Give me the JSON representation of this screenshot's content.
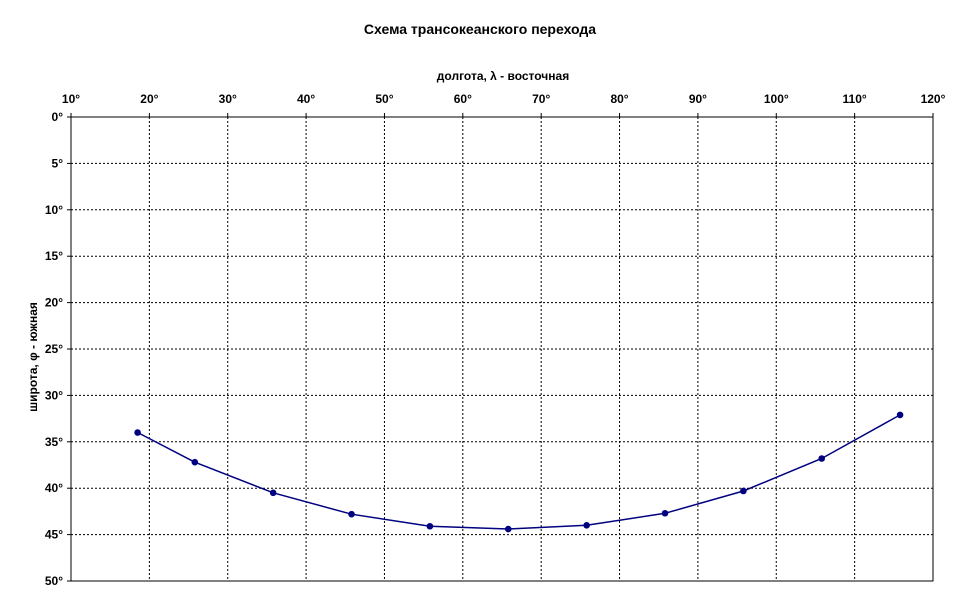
{
  "chart_data": {
    "type": "line",
    "title": "Схема трансокеанского перехода",
    "xlabel": "долгота, λ - восточная",
    "ylabel": "широта, φ - южная",
    "xlim": [
      10,
      120
    ],
    "ylim": [
      0,
      50
    ],
    "y_inverted": true,
    "x_axis_position": "top",
    "x_ticks": [
      "10°",
      "20°",
      "30°",
      "40°",
      "50°",
      "60°",
      "70°",
      "80°",
      "90°",
      "100°",
      "110°",
      "120°"
    ],
    "y_ticks": [
      "0°",
      "5°",
      "10°",
      "15°",
      "20°",
      "25°",
      "30°",
      "35°",
      "40°",
      "45°",
      "50°"
    ],
    "grid": true,
    "legend": "none",
    "series_color": "#000080",
    "series": [
      {
        "x": [
          18.5,
          25.8,
          35.8,
          45.8,
          55.8,
          65.8,
          75.8,
          85.8,
          95.8,
          105.8,
          115.8
        ],
        "y": [
          34.0,
          37.2,
          40.5,
          42.8,
          44.1,
          44.4,
          44.0,
          42.7,
          40.3,
          36.8,
          32.1
        ]
      }
    ]
  }
}
